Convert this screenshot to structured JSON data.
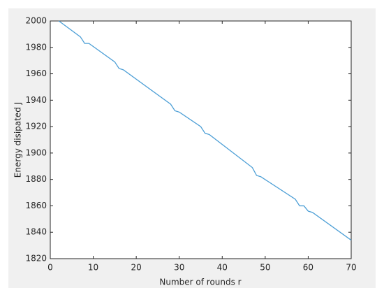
{
  "chart_data": {
    "type": "line",
    "xlabel": "Number of rounds r",
    "ylabel": "Energy disipated J",
    "x": [
      2,
      7,
      8,
      9,
      15,
      16,
      17,
      28,
      29,
      30,
      35,
      36,
      37,
      47,
      48,
      49,
      57,
      58,
      59,
      60,
      61,
      70
    ],
    "series": [
      {
        "color": "#4d9fd6",
        "values": [
          2000,
          1988,
          1983,
          1983,
          1969,
          1964,
          1963,
          1937,
          1932,
          1931,
          1920,
          1915,
          1914,
          1889,
          1883,
          1882,
          1865,
          1860,
          1860,
          1856,
          1855,
          1834
        ]
      }
    ],
    "xlim": [
      0,
      70
    ],
    "xticks": [
      0,
      10,
      20,
      30,
      40,
      50,
      60,
      70
    ],
    "ylim": [
      1820,
      2000
    ],
    "yticks": [
      1820,
      1840,
      1860,
      1880,
      1900,
      1920,
      1940,
      1960,
      1980,
      2000
    ]
  }
}
